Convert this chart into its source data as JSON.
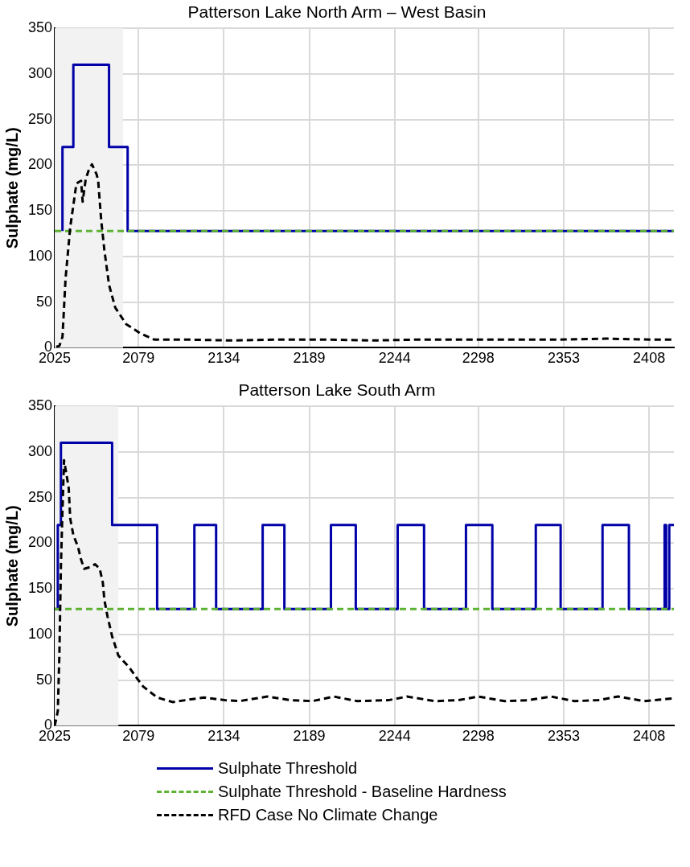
{
  "chart_data": [
    {
      "type": "line",
      "title": "Patterson Lake North Arm – West Basin",
      "ylabel": "Sulphate (mg/L)",
      "xlim": [
        2025,
        2424
      ],
      "xticks": [
        2025,
        2079,
        2134,
        2189,
        2244,
        2298,
        2353,
        2408
      ],
      "ylim": [
        0,
        350
      ],
      "yticks": [
        0,
        50,
        100,
        150,
        200,
        250,
        300,
        350
      ],
      "grid": true,
      "bands": [
        {
          "axis": "x",
          "from": 2025,
          "to": 2069,
          "color": "#f2f2f2"
        }
      ],
      "series": [
        {
          "color": "#0000a8",
          "line_style": "solid",
          "x": [
            2030,
            2030,
            2037,
            2037,
            2060,
            2060,
            2072,
            2072,
            2424
          ],
          "values": [
            128,
            220,
            220,
            310,
            310,
            220,
            220,
            128,
            128
          ]
        },
        {
          "color": "#5db233",
          "line_style": "dashed",
          "x": [
            2025,
            2424
          ],
          "values": [
            128,
            128
          ]
        },
        {
          "color": "#000000",
          "line_style": "dashed",
          "x": [
            2026,
            2028,
            2030,
            2032,
            2035,
            2039,
            2042,
            2043,
            2045,
            2047,
            2049,
            2052,
            2053,
            2055,
            2057,
            2060,
            2064,
            2071,
            2080,
            2089,
            2110,
            2140,
            2170,
            2200,
            2230,
            2260,
            2290,
            2320,
            2350,
            2380,
            2410,
            2424
          ],
          "values": [
            1,
            2,
            12,
            76,
            132,
            180,
            183,
            160,
            185,
            195,
            201,
            190,
            183,
            139,
            107,
            69,
            44,
            26,
            16,
            9,
            9,
            8,
            9,
            9,
            8,
            9,
            9,
            9,
            9,
            10,
            9,
            9
          ]
        }
      ]
    },
    {
      "type": "line",
      "title": "Patterson Lake South Arm",
      "ylabel": "Sulphate (mg/L)",
      "xlim": [
        2025,
        2424
      ],
      "xticks": [
        2025,
        2079,
        2134,
        2189,
        2244,
        2298,
        2353,
        2408
      ],
      "ylim": [
        0,
        350
      ],
      "yticks": [
        0,
        50,
        100,
        150,
        200,
        250,
        300,
        350
      ],
      "grid": true,
      "legend": "bottom",
      "bands": [
        {
          "axis": "x",
          "from": 2025,
          "to": 2066,
          "color": "#f2f2f2"
        }
      ],
      "series": [
        {
          "name": "Sulphate Threshold",
          "color": "#0000a8",
          "line_style": "solid",
          "x": [
            2025,
            2027,
            2027,
            2029,
            2029,
            2062,
            2062,
            2091,
            2091,
            2115,
            2115,
            2129,
            2129,
            2159,
            2159,
            2173,
            2173,
            2203,
            2203,
            2219,
            2219,
            2246,
            2246,
            2263,
            2263,
            2290,
            2290,
            2307,
            2307,
            2335,
            2335,
            2351,
            2351,
            2378,
            2378,
            2395,
            2395,
            2418,
            2418,
            2419,
            2419,
            2421,
            2421,
            2424
          ],
          "values": [
            128,
            128,
            220,
            220,
            310,
            310,
            220,
            220,
            128,
            128,
            220,
            220,
            128,
            128,
            220,
            220,
            128,
            128,
            220,
            220,
            128,
            128,
            220,
            220,
            128,
            128,
            220,
            220,
            128,
            128,
            220,
            220,
            128,
            128,
            220,
            220,
            128,
            128,
            220,
            220,
            128,
            128,
            220,
            220
          ]
        },
        {
          "name": "Sulphate Threshold - Baseline Hardness",
          "color": "#5db233",
          "line_style": "dashed",
          "x": [
            2025,
            2424
          ],
          "values": [
            128,
            128
          ]
        },
        {
          "name": "RFD Case No Climate Change",
          "color": "#000000",
          "line_style": "dashed",
          "x": [
            2025,
            2027,
            2028,
            2029,
            2030,
            2031,
            2034,
            2035,
            2037,
            2040,
            2042,
            2044,
            2048,
            2051,
            2054,
            2056,
            2057,
            2059,
            2062,
            2066,
            2073,
            2078,
            2082,
            2091,
            2101,
            2109,
            2121,
            2135,
            2144,
            2162,
            2177,
            2191,
            2205,
            2220,
            2240,
            2252,
            2270,
            2285,
            2298,
            2315,
            2330,
            2345,
            2360,
            2375,
            2388,
            2405,
            2424
          ],
          "values": [
            0,
            16,
            77,
            175,
            236,
            291,
            261,
            227,
            209,
            196,
            182,
            172,
            174,
            177,
            172,
            157,
            138,
            120,
            98,
            77,
            64,
            52,
            43,
            31,
            26,
            28,
            31,
            28,
            27,
            32,
            28,
            27,
            32,
            27,
            28,
            32,
            27,
            28,
            32,
            27,
            28,
            32,
            27,
            28,
            32,
            27,
            30
          ]
        }
      ]
    }
  ]
}
